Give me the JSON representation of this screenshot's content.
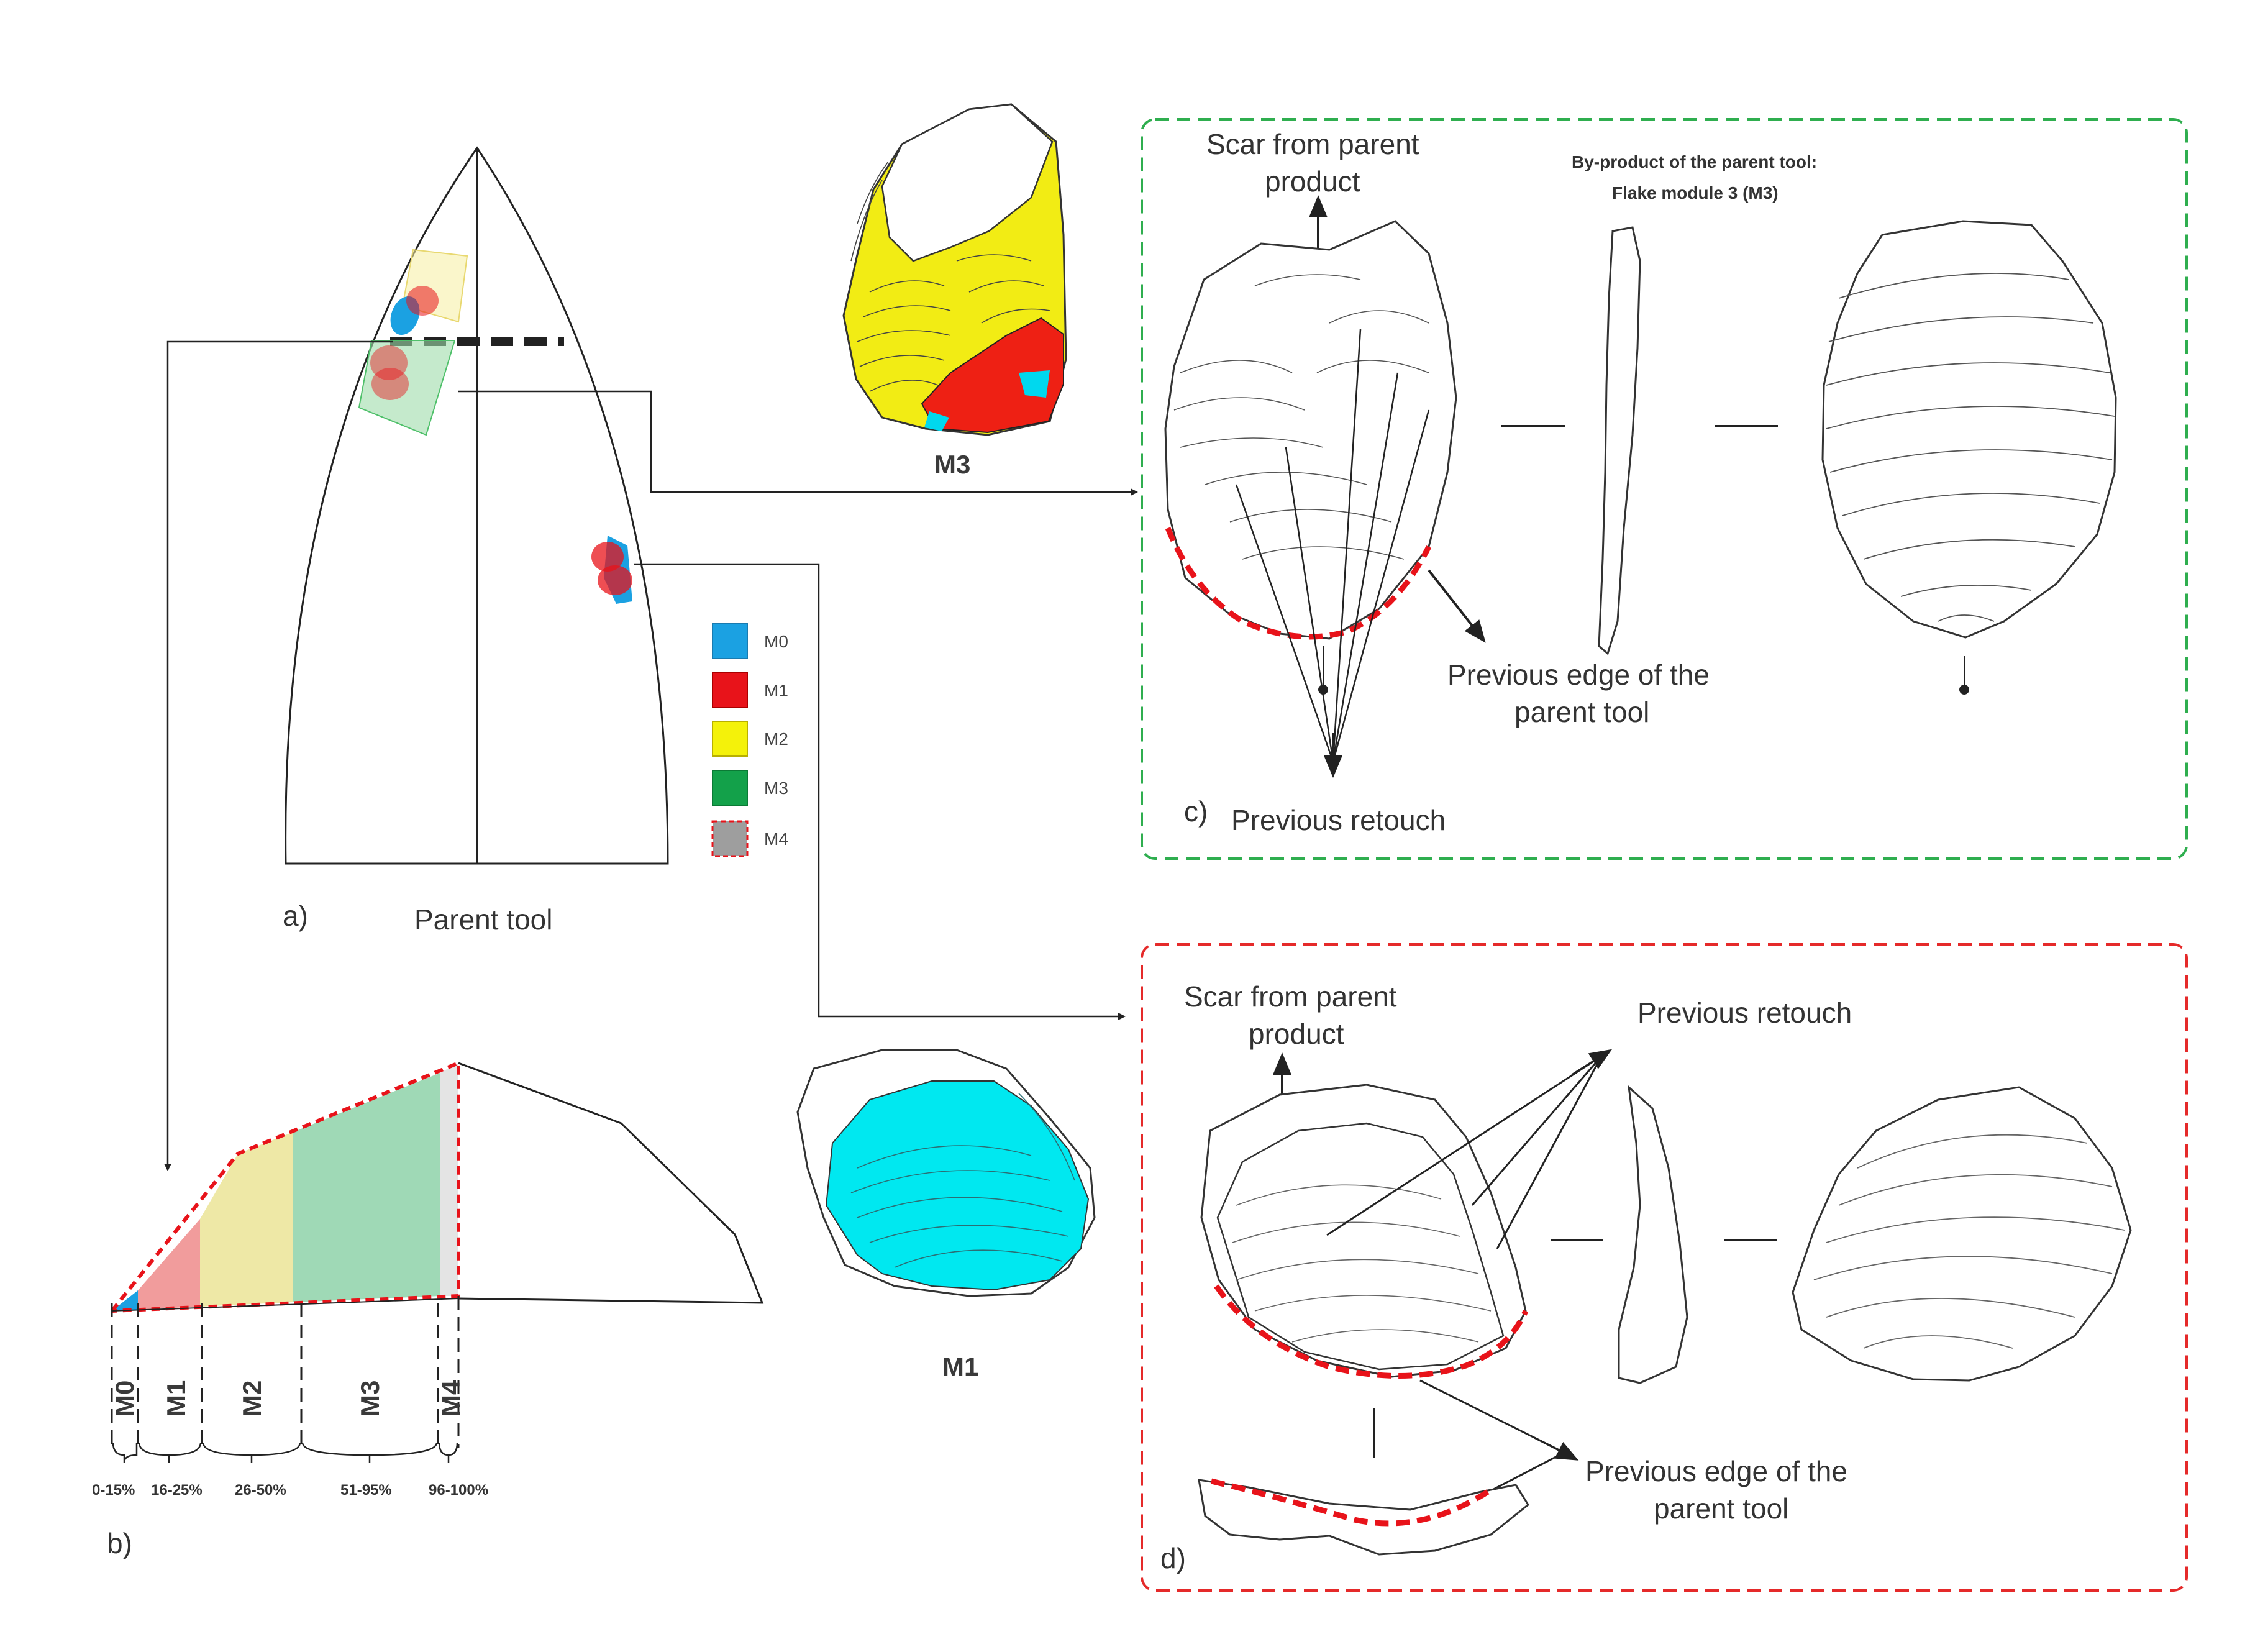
{
  "panel_a": {
    "letter": "a)",
    "caption": "Parent tool",
    "legend": [
      {
        "label": "M0",
        "color": "#1ba1e2"
      },
      {
        "label": "M1",
        "color": "#e8131a"
      },
      {
        "label": "M2",
        "color": "#f4f20a"
      },
      {
        "label": "M3",
        "color": "#13a14a"
      },
      {
        "label": "M4",
        "color": "#9e9e9e"
      }
    ]
  },
  "panel_b": {
    "letter": "b)",
    "modules": [
      {
        "label": "M0",
        "range": "0-15%"
      },
      {
        "label": "M1",
        "range": "16-25%"
      },
      {
        "label": "M2",
        "range": "26-50%"
      },
      {
        "label": "M3",
        "range": "51-95%"
      },
      {
        "label": "M4",
        "range": "96-100%"
      }
    ]
  },
  "flakes": {
    "m3_label": "M3",
    "m1_label": "M1",
    "m3_fill": "#f2ec14",
    "m1_fill": "#00e8f0",
    "m1_scar_fill": "#ee2014"
  },
  "panel_c": {
    "letter": "c)",
    "border_color": "#2fae4f",
    "title_line1": "By-product of the parent tool:",
    "title_line2": "Flake module 3 (M3)",
    "scar_line1": "Scar from parent",
    "scar_line2": "product",
    "edge_line1": "Previous edge of the",
    "edge_line2": "parent tool",
    "retouch": "Previous retouch"
  },
  "panel_d": {
    "letter": "d)",
    "border_color": "#e52a2a",
    "scar_line1": "Scar from parent",
    "scar_line2": "product",
    "retouch": "Previous retouch",
    "edge_line1": "Previous edge of the",
    "edge_line2": "parent tool"
  }
}
